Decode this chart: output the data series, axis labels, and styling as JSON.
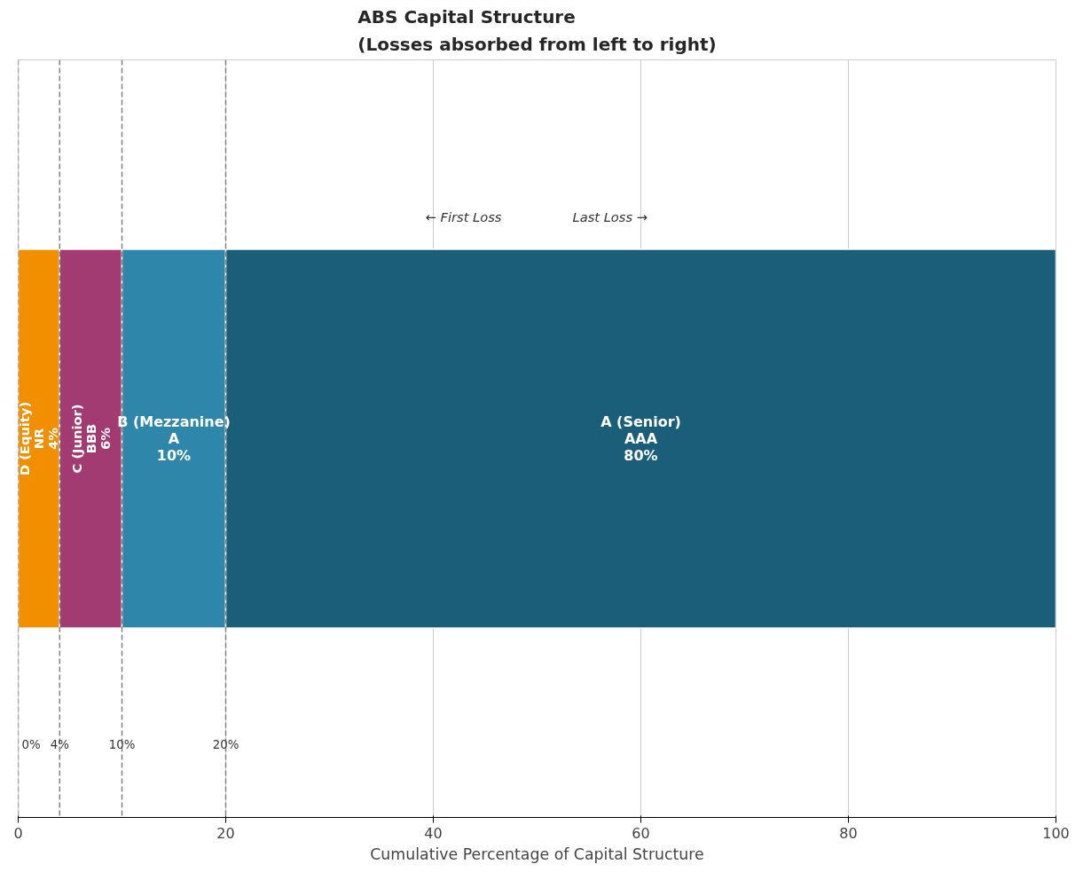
{
  "chart_data": {
    "type": "bar",
    "orientation": "horizontal",
    "stacked": true,
    "title": "ABS Capital Structure\n(Losses absorbed from left to right)",
    "xlabel": "Cumulative Percentage of Capital Structure",
    "categories": [
      null
    ],
    "series": [
      {
        "name": "D (Equity)",
        "color": "#f18f01",
        "values": [
          4
        ],
        "value_labels": [
          "4%"
        ]
      },
      {
        "name": "C (Junior)",
        "color": "#a23b72",
        "values": [
          6
        ],
        "value_labels": [
          "6%"
        ]
      },
      {
        "name": "B (Mezzanine)",
        "color": "#2e86ab",
        "values": [
          10
        ],
        "value_labels": [
          "10%"
        ]
      },
      {
        "name": "A (Senior)",
        "color": "#1b5e7a",
        "values": [
          80
        ],
        "value_labels": [
          "80%"
        ]
      }
    ],
    "annotations": [
      "NR",
      "BBB",
      "A",
      "AAA",
      "← First Loss",
      "Last Loss →"
    ],
    "ref_lines": [
      {
        "axis": "x",
        "value": 0,
        "label": "0%",
        "color": "#808080",
        "line_style": "dashed"
      },
      {
        "axis": "x",
        "value": 4,
        "label": "4%",
        "color": "#808080",
        "line_style": "dashed"
      },
      {
        "axis": "x",
        "value": 10,
        "label": "10%",
        "color": "#808080",
        "line_style": "dashed"
      },
      {
        "axis": "x",
        "value": 20,
        "label": "20%",
        "color": "#808080",
        "line_style": "dashed"
      }
    ],
    "xlim": [
      0,
      100
    ],
    "xticks": [
      0,
      20,
      40,
      60,
      80,
      100
    ],
    "grid": "x",
    "tick_labels": "x"
  }
}
